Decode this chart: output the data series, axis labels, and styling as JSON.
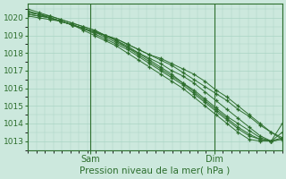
{
  "title": "",
  "xlabel": "Pression niveau de la mer( hPa )",
  "ylabel": "",
  "bg_color": "#cce8dd",
  "grid_color": "#aad4c4",
  "line_color": "#2d6e2d",
  "marker": "+",
  "ylim": [
    1012.5,
    1020.8
  ],
  "xlim": [
    0,
    90
  ],
  "yticks": [
    1013,
    1014,
    1015,
    1016,
    1017,
    1018,
    1019,
    1020
  ],
  "xtick_positions": [
    22,
    66
  ],
  "xtick_labels": [
    "Sam",
    "Dim"
  ],
  "series": [
    [
      1020.2,
      1020.1,
      1020.0,
      1019.8,
      1019.6,
      1019.4,
      1019.1,
      1018.8,
      1018.5,
      1018.2,
      1017.8,
      1017.4,
      1017.0,
      1016.6,
      1016.2,
      1015.7,
      1015.2,
      1014.7,
      1014.2,
      1013.7,
      1013.3,
      1013.1,
      1013.0,
      1013.2
    ],
    [
      1020.3,
      1020.2,
      1020.0,
      1019.8,
      1019.6,
      1019.3,
      1019.0,
      1018.7,
      1018.4,
      1018.0,
      1017.6,
      1017.2,
      1016.8,
      1016.4,
      1016.0,
      1015.5,
      1015.0,
      1014.5,
      1014.0,
      1013.5,
      1013.1,
      1013.0,
      1013.0,
      1013.1
    ],
    [
      1020.1,
      1020.0,
      1019.9,
      1019.8,
      1019.6,
      1019.4,
      1019.2,
      1019.0,
      1018.8,
      1018.5,
      1018.2,
      1017.9,
      1017.6,
      1017.3,
      1016.9,
      1016.5,
      1016.1,
      1015.7,
      1015.3,
      1014.8,
      1014.4,
      1013.9,
      1013.5,
      1013.2
    ],
    [
      1020.4,
      1020.2,
      1020.0,
      1019.8,
      1019.6,
      1019.4,
      1019.2,
      1019.0,
      1018.8,
      1018.5,
      1018.2,
      1017.9,
      1017.7,
      1017.4,
      1017.1,
      1016.8,
      1016.4,
      1015.9,
      1015.5,
      1015.0,
      1014.5,
      1014.0,
      1013.5,
      1013.1
    ],
    [
      1020.5,
      1020.3,
      1020.1,
      1019.9,
      1019.7,
      1019.5,
      1019.3,
      1019.0,
      1018.7,
      1018.3,
      1018.0,
      1017.7,
      1017.4,
      1017.0,
      1016.7,
      1016.3,
      1015.8,
      1015.3,
      1014.8,
      1014.3,
      1013.8,
      1013.3,
      1013.0,
      1013.1
    ],
    [
      1020.3,
      1020.2,
      1020.1,
      1019.9,
      1019.7,
      1019.5,
      1019.3,
      1019.0,
      1018.7,
      1018.4,
      1018.0,
      1017.6,
      1017.2,
      1016.8,
      1016.3,
      1015.8,
      1015.3,
      1014.8,
      1014.3,
      1013.8,
      1013.4,
      1013.1,
      1013.0,
      1014.0
    ],
    [
      1020.2,
      1020.1,
      1020.0,
      1019.8,
      1019.6,
      1019.4,
      1019.2,
      1018.9,
      1018.6,
      1018.3,
      1017.9,
      1017.5,
      1017.1,
      1016.7,
      1016.3,
      1015.9,
      1015.4,
      1014.9,
      1014.4,
      1014.0,
      1013.6,
      1013.2,
      1013.0,
      1013.5
    ]
  ]
}
